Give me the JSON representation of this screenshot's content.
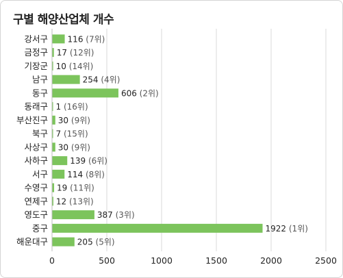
{
  "chart_data": {
    "type": "bar",
    "orientation": "horizontal",
    "title": "구별 해양산업체 개수",
    "categories": [
      "강서구",
      "금정구",
      "기장군",
      "남구",
      "동구",
      "동래구",
      "부산진구",
      "북구",
      "사상구",
      "사하구",
      "서구",
      "수영구",
      "연제구",
      "영도구",
      "중구",
      "해운대구"
    ],
    "values": [
      116,
      17,
      10,
      254,
      606,
      1,
      30,
      7,
      30,
      139,
      114,
      19,
      12,
      387,
      1922,
      205
    ],
    "ranks": [
      "(7위)",
      "(12위)",
      "(14위)",
      "(4위)",
      "(2위)",
      "(16위)",
      "(9위)",
      "(15위)",
      "(9위)",
      "(6위)",
      "(8위)",
      "(11위)",
      "(13위)",
      "(3위)",
      "(1위)",
      "(5위)"
    ],
    "xlim": [
      0,
      2500
    ],
    "xticks": [
      0,
      500,
      1000,
      1500,
      2000,
      2500
    ],
    "grid": true,
    "bar_color": "#7cc45c"
  }
}
